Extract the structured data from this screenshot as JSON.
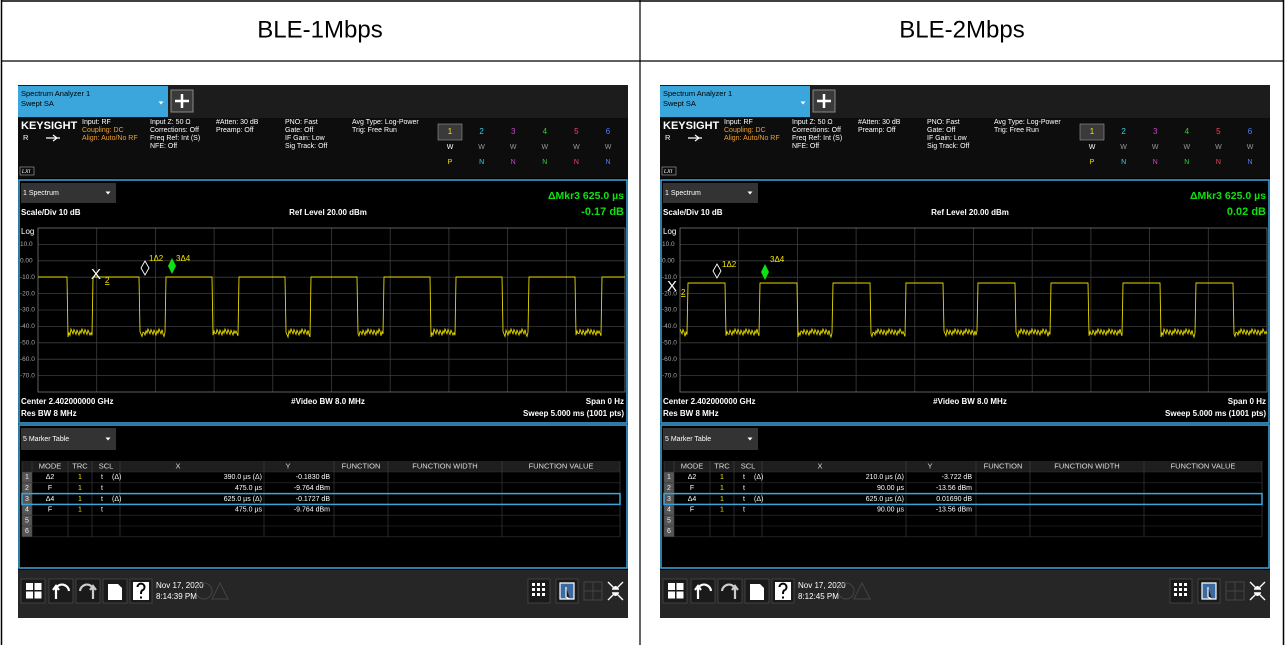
{
  "header": {
    "columns": [
      "BLE-1Mbps",
      "BLE-2Mbps"
    ]
  },
  "screens": [
    {
      "tab": {
        "title": "Spectrum Analyzer 1",
        "mode": "Swept SA"
      },
      "brand": "KEYSIGHT",
      "input": {
        "lines": [
          "Input: RF",
          "Coupling: DC",
          "Align: Auto/No RF"
        ],
        "remote": "R",
        "lxi": "LXI"
      },
      "settings": [
        [
          "Input Z: 50 Ω",
          "Corrections: Off",
          "Freq Ref: Int (S)",
          "NFE: Off"
        ],
        [
          "#Atten: 30 dB",
          "Preamp: Off"
        ],
        [
          "PNO: Fast",
          "Gate: Off",
          "IF Gain: Low",
          "Sig Track: Off"
        ],
        [
          "Avg Type: Log-Power",
          "Trig: Free Run"
        ]
      ],
      "traces": {
        "numbers": [
          "1",
          "2",
          "3",
          "4",
          "5",
          "6"
        ],
        "types": [
          "W",
          "W",
          "W",
          "W",
          "W",
          "W"
        ],
        "detectors": [
          "P",
          "N",
          "N",
          "N",
          "N",
          "N"
        ]
      },
      "spectrum": {
        "window": "1 Spectrum",
        "readout": "ΔMkr3 625.0 µs",
        "readout_value": "-0.17 dB",
        "scale": "Scale/Div 10 dB",
        "ref": "Ref Level 20.00 dBm",
        "log": "Log",
        "y_labels": [
          "10.0",
          "0.00",
          "-10.0",
          "-20.0",
          "-30.0",
          "-40.0",
          "-50.0",
          "-60.0",
          "-70.0"
        ],
        "markers": {
          "m2": "X",
          "m2_sub": "2",
          "m1": "1Δ2",
          "m3": "3Δ4"
        },
        "center": "Center 2.402000000 GHz",
        "vbw": "#Video BW 8.0 MHz",
        "span": "Span 0 Hz",
        "rbw": "Res BW 8 MHz",
        "sweep": "Sweep 5.000 ms (1001 pts)"
      },
      "marker_table": {
        "window": "5 Marker Table",
        "columns": [
          "MODE",
          "TRC",
          "SCL",
          "X",
          "Y",
          "FUNCTION",
          "FUNCTION WIDTH",
          "FUNCTION VALUE"
        ],
        "rows": [
          {
            "n": "1",
            "mode": "Δ2",
            "trc": "1",
            "scl": "t",
            "delta": "(Δ)",
            "x": "390.0 µs (Δ)",
            "y": "-0.1830 dB"
          },
          {
            "n": "2",
            "mode": "F",
            "trc": "1",
            "scl": "t",
            "x": "475.0 µs",
            "y": "-9.764 dBm"
          },
          {
            "n": "3",
            "mode": "Δ4",
            "trc": "1",
            "scl": "t",
            "delta": "(Δ)",
            "x": "625.0 µs (Δ)",
            "y": "-0.1727 dB"
          },
          {
            "n": "4",
            "mode": "F",
            "trc": "1",
            "scl": "t",
            "x": "475.0 µs",
            "y": "-9.764 dBm"
          },
          {
            "n": "5"
          },
          {
            "n": "6"
          }
        ]
      },
      "taskbar": {
        "date": "Nov 17, 2020",
        "time": "8:14:39 PM"
      }
    },
    {
      "tab": {
        "title": "Spectrum Analyzer 1",
        "mode": "Swept SA"
      },
      "brand": "KEYSIGHT",
      "input": {
        "lines": [
          "Input: RF",
          "Coupling: DC",
          "Align: Auto/No RF"
        ],
        "remote": "R",
        "lxi": "LXI"
      },
      "settings": [
        [
          "Input Z: 50 Ω",
          "Corrections: Off",
          "Freq Ref: Int (S)",
          "NFE: Off"
        ],
        [
          "#Atten: 30 dB",
          "Preamp: Off"
        ],
        [
          "PNO: Fast",
          "Gate: Off",
          "IF Gain: Low",
          "Sig Track: Off"
        ],
        [
          "Avg Type: Log-Power",
          "Trig: Free Run"
        ]
      ],
      "traces": {
        "numbers": [
          "1",
          "2",
          "3",
          "4",
          "5",
          "6"
        ],
        "types": [
          "W",
          "W",
          "W",
          "W",
          "W",
          "W"
        ],
        "detectors": [
          "P",
          "N",
          "N",
          "N",
          "N",
          "N"
        ]
      },
      "spectrum": {
        "window": "1 Spectrum",
        "readout": "ΔMkr3 625.0 µs",
        "readout_value": "0.02 dB",
        "scale": "Scale/Div 10 dB",
        "ref": "Ref Level 20.00 dBm",
        "log": "Log",
        "y_labels": [
          "10.0",
          "0.00",
          "-10.0",
          "-20.0",
          "-30.0",
          "-40.0",
          "-50.0",
          "-60.0",
          "-70.0"
        ],
        "markers": {
          "m2": "X",
          "m2_sub": "2",
          "m1": "1Δ2",
          "m3": "3Δ4"
        },
        "center": "Center 2.402000000 GHz",
        "vbw": "#Video BW 8.0 MHz",
        "span": "Span 0 Hz",
        "rbw": "Res BW 8 MHz",
        "sweep": "Sweep 5.000 ms (1001 pts)"
      },
      "marker_table": {
        "window": "5 Marker Table",
        "columns": [
          "MODE",
          "TRC",
          "SCL",
          "X",
          "Y",
          "FUNCTION",
          "FUNCTION WIDTH",
          "FUNCTION VALUE"
        ],
        "rows": [
          {
            "n": "1",
            "mode": "Δ2",
            "trc": "1",
            "scl": "t",
            "delta": "(Δ)",
            "x": "210.0 µs (Δ)",
            "y": "-3.722 dB"
          },
          {
            "n": "2",
            "mode": "F",
            "trc": "1",
            "scl": "t",
            "x": "90.00 µs",
            "y": "-13.56 dBm"
          },
          {
            "n": "3",
            "mode": "Δ4",
            "trc": "1",
            "scl": "t",
            "delta": "(Δ)",
            "x": "625.0 µs (Δ)",
            "y": "0.01690 dB"
          },
          {
            "n": "4",
            "mode": "F",
            "trc": "1",
            "scl": "t",
            "x": "90.00 µs",
            "y": "-13.56 dBm"
          },
          {
            "n": "5"
          },
          {
            "n": "6"
          }
        ]
      },
      "taskbar": {
        "date": "Nov 17, 2020",
        "time": "8:12:45 PM"
      }
    }
  ]
}
